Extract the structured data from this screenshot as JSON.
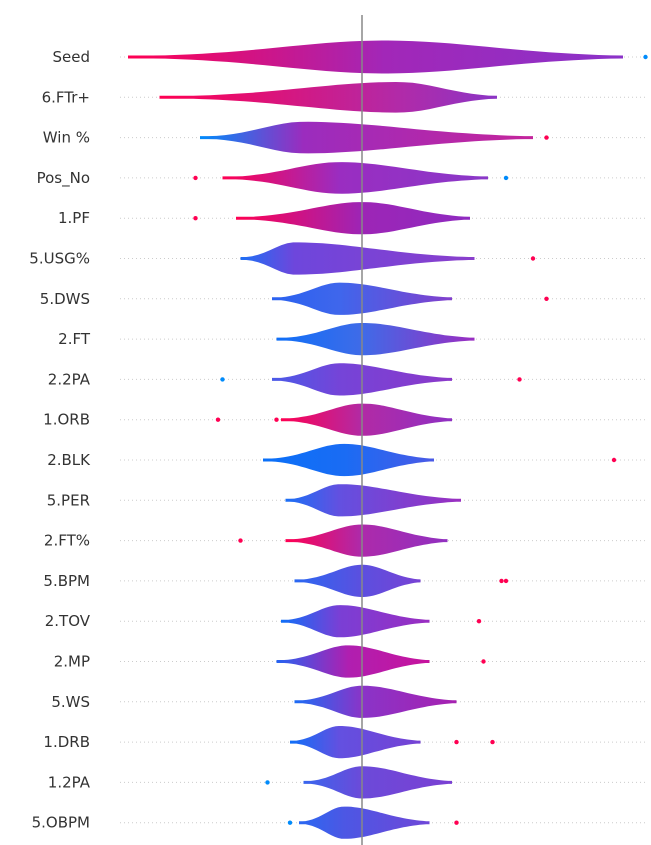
{
  "chart_data": {
    "type": "violin",
    "x_zero": 0,
    "color_scale": {
      "low": "#008bfb",
      "mid": "#8a2bd2",
      "high": "#ff0052"
    },
    "features": [
      {
        "name": "Seed",
        "min": -0.52,
        "max": 0.58,
        "width": 0.42,
        "split": 0.05,
        "c_left": "#ff0052",
        "c_mid": "#a227b8",
        "c_right": "#8b32c8",
        "outliers": [
          {
            "x": 0.63,
            "color": "#008bfb"
          }
        ]
      },
      {
        "name": "6.FTr+",
        "min": -0.45,
        "max": 0.3,
        "width": 0.35,
        "split": 0.08,
        "c_left": "#ff0052",
        "c_mid": "#b22aa8",
        "c_right": "#8b35c5",
        "outliers": []
      },
      {
        "name": "Win %",
        "min": -0.36,
        "max": 0.38,
        "width": 0.38,
        "split": -0.13,
        "c_left": "#008bfb",
        "c_mid": "#9b2cbe",
        "c_right": "#c4259c",
        "outliers": [
          {
            "x": 0.41,
            "color": "#ff0052"
          }
        ]
      },
      {
        "name": "Pos_No",
        "min": -0.31,
        "max": 0.28,
        "width": 0.38,
        "split": -0.05,
        "c_left": "#ff0052",
        "c_mid": "#9a2dc1",
        "c_right": "#8a38c8",
        "outliers": [
          {
            "x": -0.37,
            "color": "#ff0052"
          },
          {
            "x": 0.32,
            "color": "#008bfb"
          }
        ]
      },
      {
        "name": "1.PF",
        "min": -0.28,
        "max": 0.24,
        "width": 0.4,
        "split": 0.0,
        "c_left": "#ff0052",
        "c_mid": "#9d25b6",
        "c_right": "#8f2ac0",
        "outliers": [
          {
            "x": -0.37,
            "color": "#ff0052"
          }
        ]
      },
      {
        "name": "5.USG%",
        "min": -0.27,
        "max": 0.25,
        "width": 0.4,
        "split": -0.15,
        "c_left": "#1e6ff5",
        "c_mid": "#6e46dc",
        "c_right": "#8a3fcc",
        "outliers": [
          {
            "x": 0.38,
            "color": "#ff0052"
          }
        ]
      },
      {
        "name": "5.DWS",
        "min": -0.2,
        "max": 0.2,
        "width": 0.4,
        "split": -0.05,
        "c_left": "#2a62f0",
        "c_mid": "#3f66ec",
        "c_right": "#8240cc",
        "outliers": [
          {
            "x": 0.41,
            "color": "#ff0052"
          }
        ]
      },
      {
        "name": "2.FT",
        "min": -0.19,
        "max": 0.25,
        "width": 0.4,
        "split": 0.0,
        "c_left": "#0f6ff8",
        "c_mid": "#3f6be8",
        "c_right": "#9a2dc1",
        "outliers": []
      },
      {
        "name": "2.2PA",
        "min": -0.2,
        "max": 0.2,
        "width": 0.4,
        "split": -0.05,
        "c_left": "#4a5ae8",
        "c_mid": "#7544d8",
        "c_right": "#8b39c9",
        "outliers": [
          {
            "x": -0.31,
            "color": "#008bfb"
          },
          {
            "x": 0.35,
            "color": "#ff0052"
          }
        ]
      },
      {
        "name": "1.ORB",
        "min": -0.18,
        "max": 0.2,
        "width": 0.4,
        "split": 0.0,
        "c_left": "#ff0052",
        "c_mid": "#b22aa5",
        "c_right": "#8f30c3",
        "outliers": [
          {
            "x": -0.32,
            "color": "#ff0052"
          },
          {
            "x": -0.19,
            "color": "#ff0052"
          }
        ]
      },
      {
        "name": "2.BLK",
        "min": -0.22,
        "max": 0.16,
        "width": 0.4,
        "split": -0.04,
        "c_left": "#0a70f8",
        "c_mid": "#1a6cf4",
        "c_right": "#4a5ae6",
        "outliers": [
          {
            "x": 0.56,
            "color": "#ff0052"
          }
        ]
      },
      {
        "name": "5.PER",
        "min": -0.17,
        "max": 0.22,
        "width": 0.4,
        "split": -0.05,
        "c_left": "#1a6ff6",
        "c_mid": "#6350e0",
        "c_right": "#9a2fc0",
        "outliers": []
      },
      {
        "name": "2.FT%",
        "min": -0.17,
        "max": 0.19,
        "width": 0.4,
        "split": 0.0,
        "c_left": "#ff0052",
        "c_mid": "#ad2aab",
        "c_right": "#9130c0",
        "outliers": [
          {
            "x": -0.27,
            "color": "#ff0052"
          }
        ]
      },
      {
        "name": "5.BPM",
        "min": -0.15,
        "max": 0.13,
        "width": 0.4,
        "split": 0.0,
        "c_left": "#2a68f2",
        "c_mid": "#5c4fdf",
        "c_right": "#7842d4",
        "outliers": [
          {
            "x": 0.31,
            "color": "#ff0052"
          },
          {
            "x": 0.32,
            "color": "#ff0052"
          }
        ]
      },
      {
        "name": "2.TOV",
        "min": -0.18,
        "max": 0.15,
        "width": 0.4,
        "split": -0.05,
        "c_left": "#0f6ff8",
        "c_mid": "#7a3fd5",
        "c_right": "#9a2dc1",
        "outliers": [
          {
            "x": 0.26,
            "color": "#ff0052"
          }
        ]
      },
      {
        "name": "2.MP",
        "min": -0.19,
        "max": 0.15,
        "width": 0.4,
        "split": -0.03,
        "c_left": "#2563f2",
        "c_mid": "#b01fb0",
        "c_right": "#c7139d",
        "outliers": [
          {
            "x": 0.27,
            "color": "#ff0052"
          }
        ]
      },
      {
        "name": "5.WS",
        "min": -0.15,
        "max": 0.21,
        "width": 0.4,
        "split": 0.0,
        "c_left": "#1c6cf5",
        "c_mid": "#8a34c8",
        "c_right": "#a621b0",
        "outliers": []
      },
      {
        "name": "1.DRB",
        "min": -0.16,
        "max": 0.13,
        "width": 0.4,
        "split": -0.05,
        "c_left": "#0f6ff8",
        "c_mid": "#6350e0",
        "c_right": "#7542d4",
        "outliers": [
          {
            "x": 0.21,
            "color": "#ff0052"
          },
          {
            "x": 0.29,
            "color": "#ff0052"
          }
        ]
      },
      {
        "name": "1.2PA",
        "min": -0.13,
        "max": 0.2,
        "width": 0.4,
        "split": 0.0,
        "c_left": "#3866ee",
        "c_mid": "#6c4ad9",
        "c_right": "#7a40d3",
        "outliers": [
          {
            "x": -0.21,
            "color": "#008bfb"
          }
        ]
      },
      {
        "name": "5.OBPM",
        "min": -0.14,
        "max": 0.15,
        "width": 0.4,
        "split": -0.04,
        "c_left": "#2a68f2",
        "c_mid": "#4c57e4",
        "c_right": "#6f47d8",
        "outliers": [
          {
            "x": -0.16,
            "color": "#008bfb"
          },
          {
            "x": 0.21,
            "color": "#ff0052"
          }
        ]
      }
    ]
  }
}
